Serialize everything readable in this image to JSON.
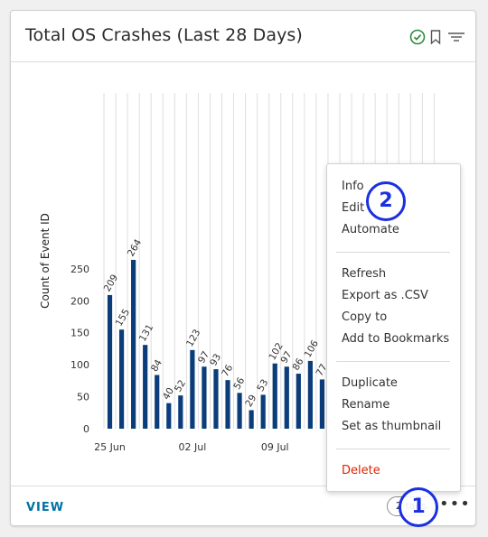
{
  "card": {
    "title": "Total OS Crashes (Last 28 Days)",
    "icons": [
      "check-circle-icon",
      "bookmark-icon",
      "filter-icon"
    ],
    "footer": {
      "view_label": "VIEW",
      "tags_label": "2 tags",
      "more_label": "•••"
    }
  },
  "chart_data": {
    "type": "bar",
    "ylabel": "Count of Event ID",
    "ylim": [
      0,
      270
    ],
    "yticks": [
      0,
      50,
      100,
      150,
      200,
      250
    ],
    "xticks": [
      "25 Jun",
      "02 Jul",
      "09 Jul"
    ],
    "grid": true,
    "color": "#0a3d7a",
    "values": [
      209,
      155,
      264,
      131,
      84,
      40,
      52,
      123,
      97,
      93,
      76,
      56,
      29,
      53,
      102,
      97,
      86,
      106,
      77
    ]
  },
  "menu": {
    "groups": [
      [
        "Info",
        "Edit",
        "Automate"
      ],
      [
        "Refresh",
        "Export as .CSV",
        "Copy to",
        "Add to Bookmarks"
      ],
      [
        "Duplicate",
        "Rename",
        "Set as thumbnail"
      ],
      [
        "Delete"
      ]
    ]
  },
  "markers": [
    "1",
    "2"
  ],
  "colors": {
    "accent": "#0072a3",
    "bar": "#0a3d7a",
    "danger": "#e02200",
    "marker": "#1a2fe0",
    "check": "#2e8b3a"
  }
}
